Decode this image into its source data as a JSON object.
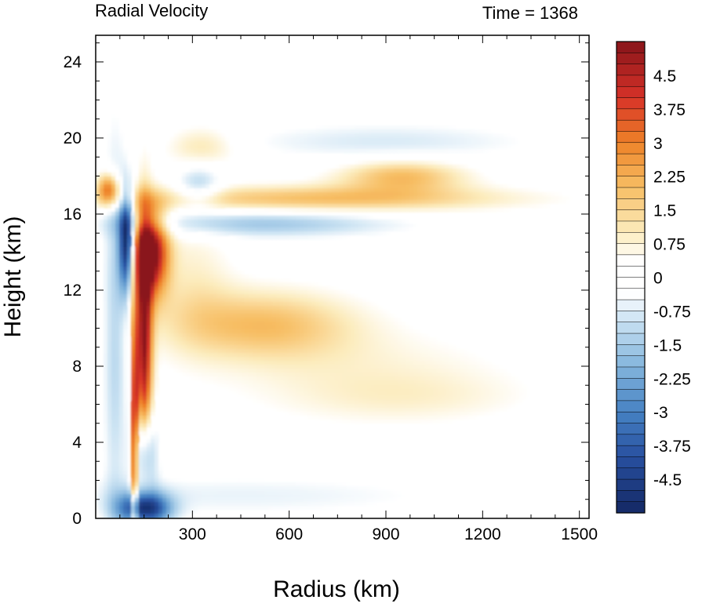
{
  "chart_data": {
    "type": "heatmap",
    "title": "Radial Velocity",
    "subtitle": "Time = 1368",
    "xlabel": "Radius (km)",
    "ylabel": "Height (km)",
    "xlim": [
      0,
      1530
    ],
    "ylim": [
      0,
      25.4
    ],
    "x_ticks": [
      300,
      600,
      900,
      1200,
      1500
    ],
    "x_tick_labels": [
      "300",
      "600",
      "900",
      "1200",
      "1500"
    ],
    "y_ticks": [
      0,
      4,
      8,
      12,
      16,
      20,
      24
    ],
    "y_tick_labels": [
      "0",
      "4",
      "8",
      "12",
      "16",
      "20",
      "24"
    ],
    "grid": false,
    "colorbar": {
      "min": -5.25,
      "max": 5.25,
      "step": 0.25,
      "labels": [
        "4.5",
        "3.75",
        "3",
        "2.25",
        "1.5",
        "0.75",
        "0",
        "-0.75",
        "-1.5",
        "-2.25",
        "-3",
        "-3.75",
        "-4.5"
      ],
      "colors": {
        "darkest_negative": "#1a2f6b",
        "mid_negative": "#4a8fc8",
        "light_negative": "#d6eaf6",
        "zero": "#ffffff",
        "light_positive": "#fbeaba",
        "mid_positive": "#f3961e",
        "darkest_positive": "#8e1a1a"
      }
    },
    "features": [
      {
        "r": 170,
        "z": 14,
        "sr": 38,
        "sz": 1.6,
        "v": 5.4
      },
      {
        "r": 150,
        "z": 9,
        "sr": 18,
        "sz": 4.5,
        "v": 4.8
      },
      {
        "r": 120,
        "z": 4,
        "sr": 8,
        "sz": 4.5,
        "v": 4.5
      },
      {
        "r": 95,
        "z": 14.5,
        "sr": 16,
        "sz": 1.8,
        "v": -5.2
      },
      {
        "r": 150,
        "z": 0.5,
        "sr": 55,
        "sz": 0.6,
        "v": -5.0
      },
      {
        "r": 150,
        "z": 3.5,
        "sr": 25,
        "sz": 1.5,
        "v": -3.0
      },
      {
        "r": 520,
        "z": 10.2,
        "sr": 200,
        "sz": 1.3,
        "v": 1.9
      },
      {
        "r": 850,
        "z": 7.5,
        "sr": 330,
        "sz": 1.8,
        "v": 0.7
      },
      {
        "r": 700,
        "z": 16.8,
        "sr": 420,
        "sz": 0.5,
        "v": 2.0
      },
      {
        "r": 950,
        "z": 18.0,
        "sr": 140,
        "sz": 0.6,
        "v": 2.0
      },
      {
        "r": 500,
        "z": 15.5,
        "sr": 300,
        "sz": 0.5,
        "v": -1.6
      },
      {
        "r": 900,
        "z": 19.8,
        "sr": 330,
        "sz": 0.7,
        "v": -0.8
      },
      {
        "r": 40,
        "z": 17.3,
        "sr": 25,
        "sz": 0.6,
        "v": 3.2
      },
      {
        "r": 330,
        "z": 19.5,
        "sr": 80,
        "sz": 0.8,
        "v": 1.2
      },
      {
        "r": 320,
        "z": 17.5,
        "sr": 50,
        "sz": 0.8,
        "v": -1.5
      },
      {
        "r": 450,
        "z": 1.2,
        "sr": 500,
        "sz": 0.8,
        "v": -0.6
      },
      {
        "r": 60,
        "z": 10,
        "sr": 25,
        "sz": 7,
        "v": -1.3
      },
      {
        "r": 300,
        "z": 12.5,
        "sr": 90,
        "sz": 2.5,
        "v": 0.8
      },
      {
        "r": 1000,
        "z": 6.3,
        "sr": 260,
        "sz": 0.9,
        "v": 0.4
      }
    ]
  }
}
